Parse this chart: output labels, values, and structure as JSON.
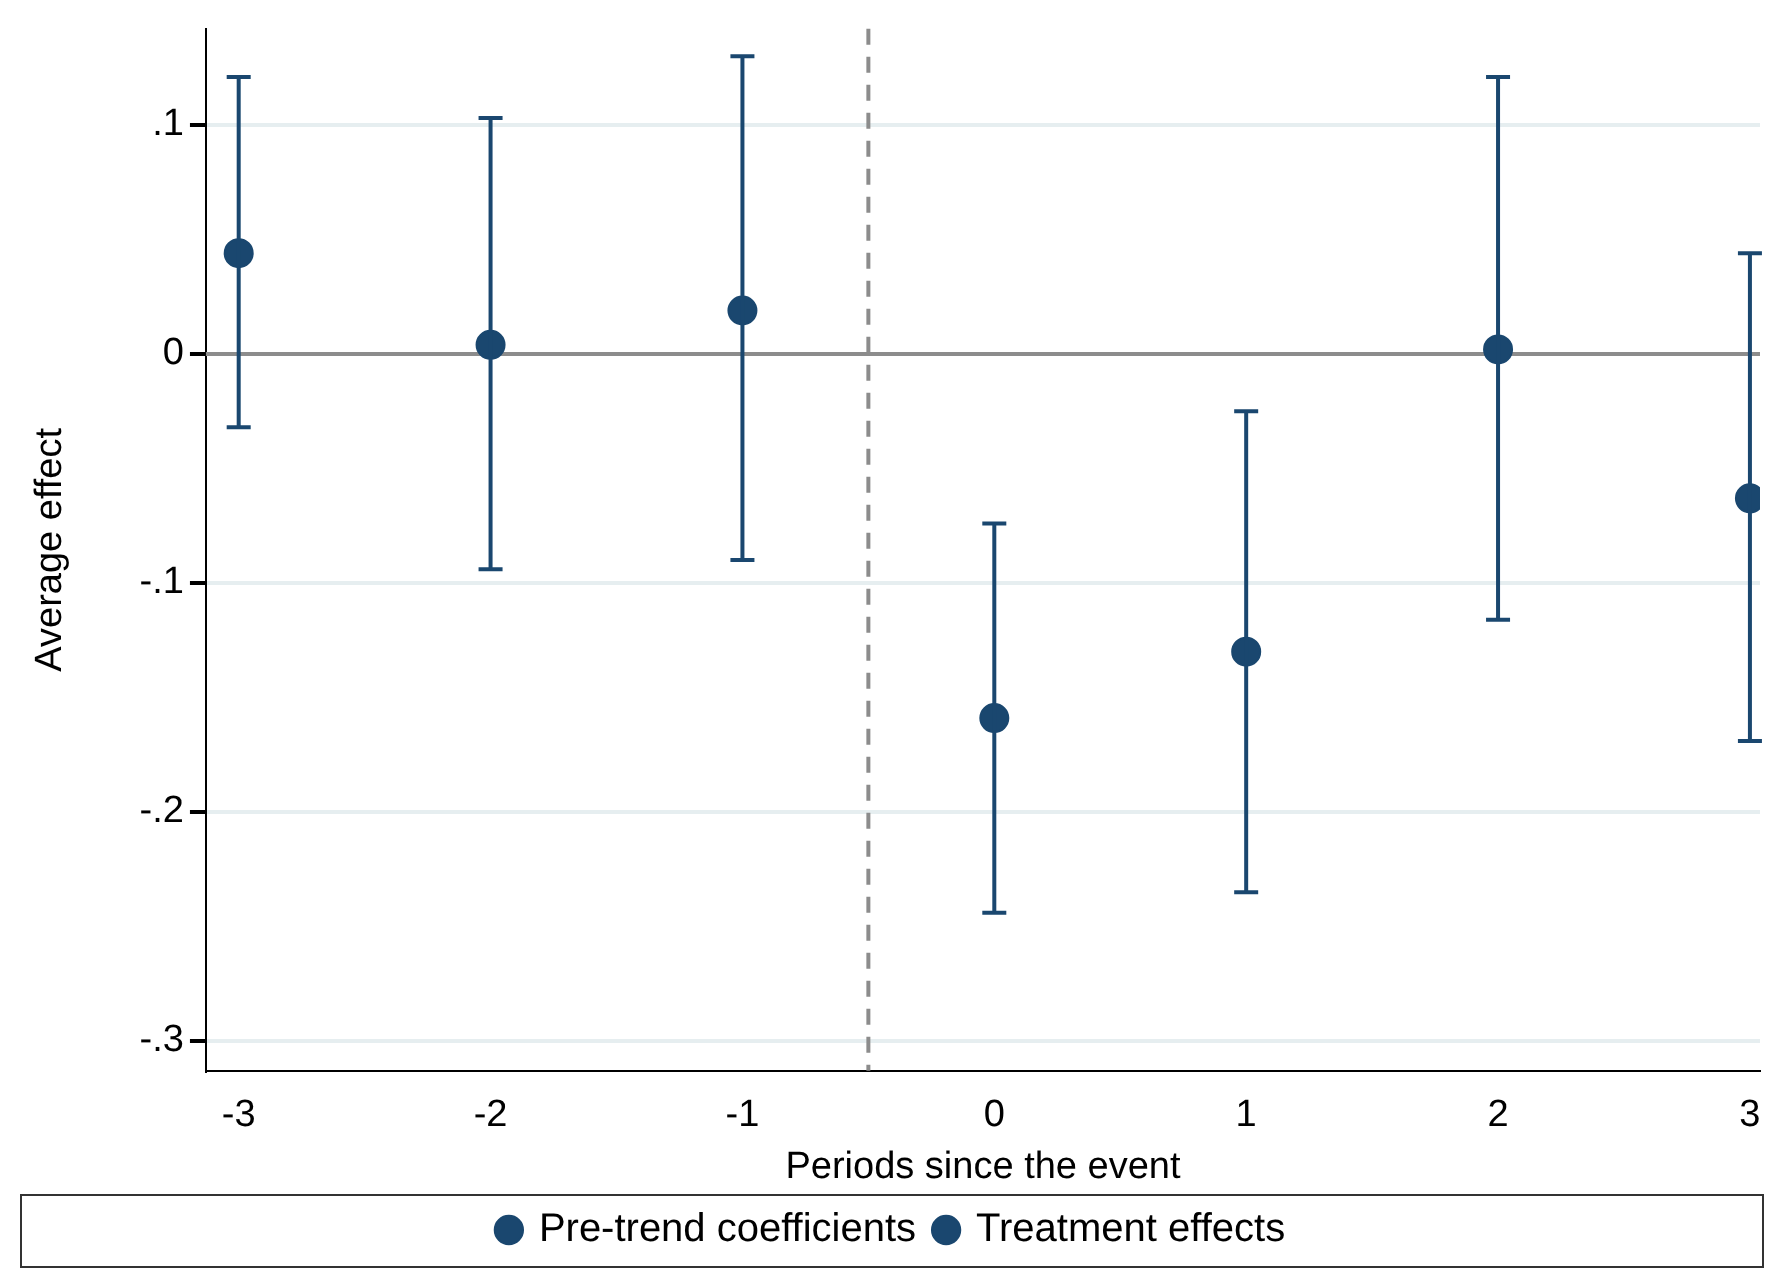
{
  "chart_data": {
    "type": "scatter",
    "xlabel": "Periods since the event",
    "ylabel": "Average effect",
    "xlim": [
      -3.13,
      3.04
    ],
    "xticks": [
      -3,
      -2,
      -1,
      0,
      1,
      2,
      3
    ],
    "ylim": [
      -0.313,
      0.142
    ],
    "yticks": [
      {
        "value": -0.3,
        "label": "-.3"
      },
      {
        "value": -0.2,
        "label": "-.2"
      },
      {
        "value": -0.1,
        "label": "-.1"
      },
      0,
      {
        "value": 0.1,
        "label": ".1"
      }
    ],
    "grid": "y",
    "legend": "bottom",
    "marker": "circle",
    "ref_lines": [
      {
        "axis": "x",
        "value": -0.5,
        "color": "#8c8c8c",
        "line_style": "dashed"
      },
      {
        "axis": "y",
        "value": 0,
        "color": "#8c8c8c",
        "line_style": "solid"
      }
    ],
    "series": [
      {
        "name": "Pre-trend coefficients",
        "color": "#1a476f",
        "x": [
          -3,
          -2,
          -1
        ],
        "values": [
          0.044,
          0.004,
          0.019
        ],
        "errors": [
          [
            -0.032,
            0.121
          ],
          [
            -0.094,
            0.103
          ],
          [
            -0.09,
            0.13
          ]
        ]
      },
      {
        "name": "Treatment effects",
        "color": "#1a476f",
        "x": [
          0,
          1,
          2,
          3
        ],
        "values": [
          -0.159,
          -0.13,
          0.002,
          -0.063
        ],
        "errors": [
          [
            -0.244,
            -0.074
          ],
          [
            -0.235,
            -0.025
          ],
          [
            -0.116,
            0.121
          ],
          [
            -0.169,
            0.044
          ]
        ]
      }
    ]
  }
}
